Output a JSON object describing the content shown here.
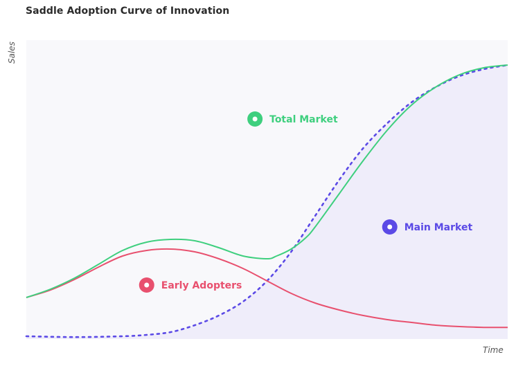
{
  "chart_data": {
    "type": "line",
    "title": "Saddle Adoption Curve of Innovation",
    "xlabel": "Time",
    "ylabel": "Sales",
    "xlim": [
      0,
      100
    ],
    "ylim": [
      0,
      100
    ],
    "grid": false,
    "series": [
      {
        "name": "Total Market",
        "color": "#3ecf7e",
        "style": "solid",
        "x": [
          0,
          5,
          10,
          15,
          20,
          25,
          30,
          35,
          40,
          45,
          50,
          52,
          55,
          58,
          60,
          65,
          70,
          75,
          80,
          85,
          90,
          95,
          100
        ],
        "values": [
          14.5,
          17.5,
          21.5,
          26.5,
          31.5,
          34.5,
          35.5,
          35,
          32.5,
          29.5,
          28.5,
          29.5,
          32,
          36,
          40,
          52,
          64,
          75,
          84,
          90.5,
          95,
          97.5,
          98.5
        ]
      },
      {
        "name": "Early Adopters",
        "color": "#e8506e",
        "style": "solid",
        "x": [
          0,
          5,
          10,
          15,
          20,
          25,
          30,
          35,
          40,
          45,
          50,
          55,
          60,
          65,
          70,
          75,
          80,
          85,
          90,
          95,
          100
        ],
        "values": [
          14.5,
          17.2,
          21,
          25.5,
          29.5,
          31.5,
          32,
          31,
          28.5,
          25,
          20.5,
          16,
          12.5,
          10,
          8,
          6.5,
          5.5,
          4.5,
          4,
          3.7,
          3.7
        ]
      },
      {
        "name": "Main Market",
        "color": "#5b4ae6",
        "style": "dotted",
        "x": [
          0,
          10,
          20,
          25,
          30,
          35,
          40,
          45,
          50,
          55,
          60,
          65,
          70,
          75,
          80,
          85,
          90,
          95,
          100
        ],
        "values": [
          0.5,
          0.2,
          0.5,
          1,
          2,
          4.5,
          8,
          13,
          20.5,
          31,
          44,
          57,
          68.5,
          77.5,
          85,
          90.5,
          94.5,
          97,
          98.5
        ]
      }
    ],
    "annotations": [
      {
        "text": "Total Market",
        "color": "#3ecf7e",
        "x": 47.5,
        "y": 79
      },
      {
        "text": "Main Market",
        "color": "#5b4ae6",
        "x": 75.5,
        "y": 40
      },
      {
        "text": "Early Adopters",
        "color": "#e8506e",
        "x": 25,
        "y": 19
      }
    ],
    "colors": {
      "plot_background": "#f8f8fb",
      "main_market_fill": "#efedfa"
    }
  }
}
